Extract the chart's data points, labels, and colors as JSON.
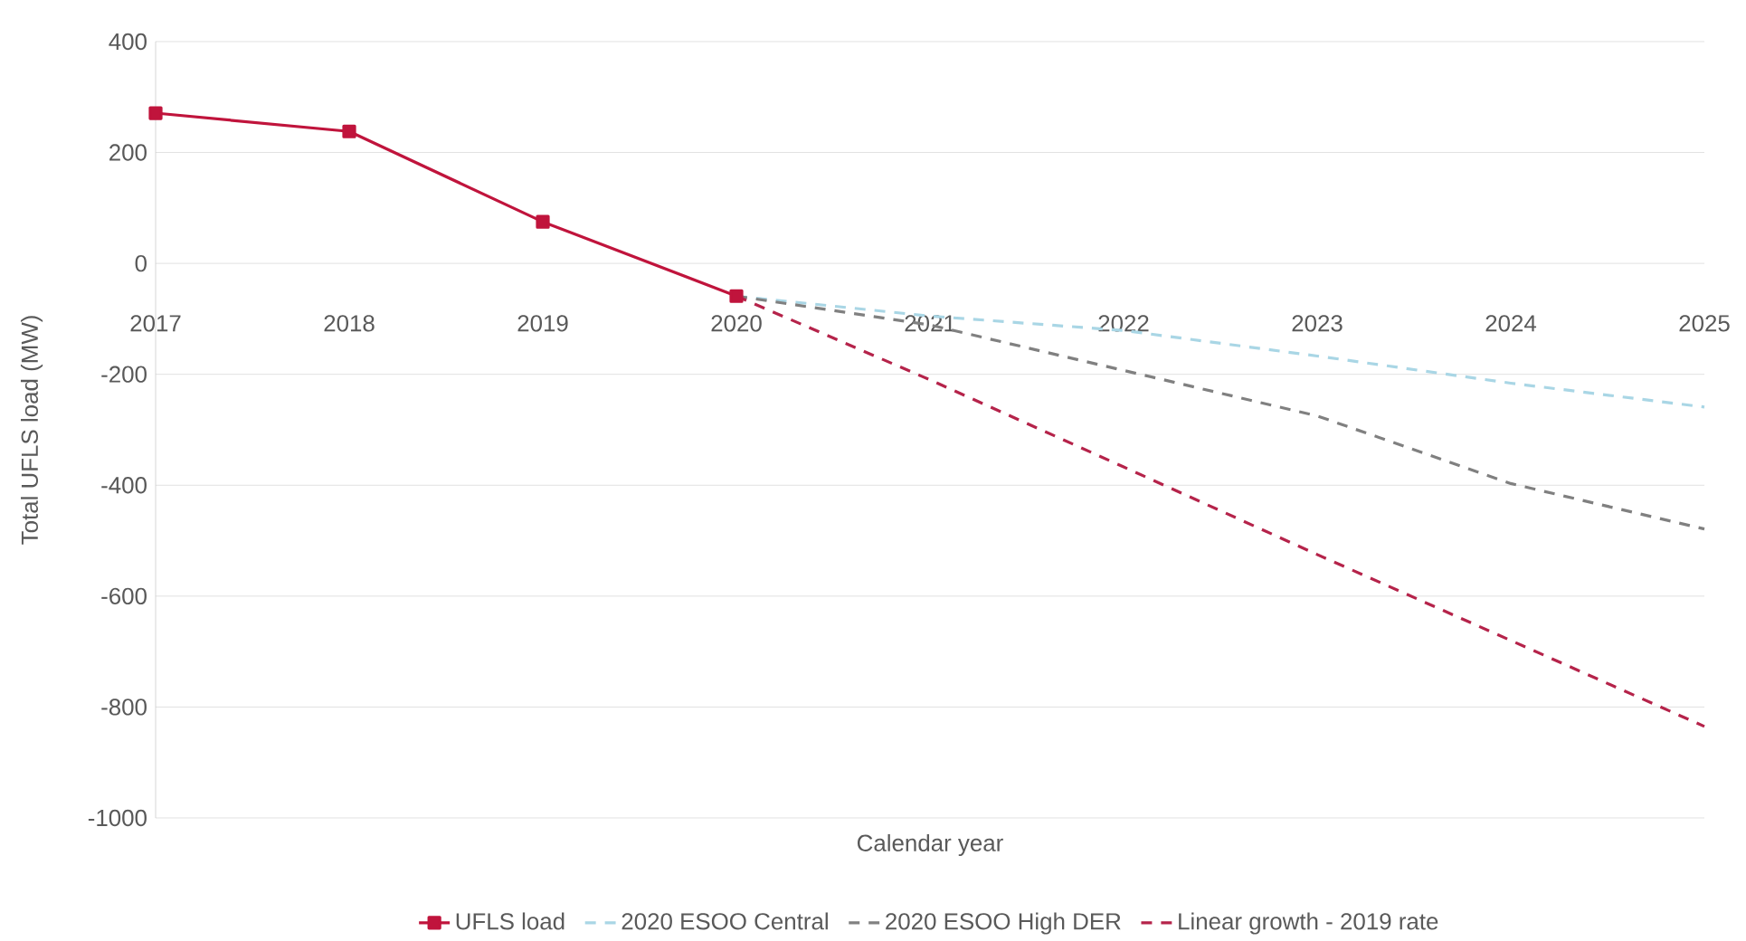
{
  "chart_data": {
    "type": "line",
    "xlabel": "Calendar year",
    "ylabel": "Total UFLS load (MW)",
    "categories": [
      "2017",
      "2018",
      "2019",
      "2020",
      "2021",
      "2022",
      "2023",
      "2024",
      "2025"
    ],
    "series": [
      {
        "name": "UFLS load",
        "color": "#c0143c",
        "marker": "square",
        "line_style": "solid",
        "values": [
          271,
          238,
          75,
          -59,
          null,
          null,
          null,
          null,
          null
        ]
      },
      {
        "name": "2020 ESOO Central",
        "color": "#a9d6e5",
        "marker": "none",
        "line_style": "dashed",
        "values": [
          null,
          null,
          null,
          -59,
          -95,
          -121,
          -167,
          -216,
          -259
        ]
      },
      {
        "name": "2020 ESOO High DER",
        "color": "#808080",
        "marker": "none",
        "line_style": "dashed",
        "values": [
          null,
          null,
          null,
          -59,
          -111,
          -193,
          -275,
          -397,
          -479
        ]
      },
      {
        "name": "Linear growth - 2019 rate",
        "color": "#b5234a",
        "marker": "none",
        "line_style": "dashed",
        "values": [
          null,
          null,
          null,
          -59,
          -210,
          -367,
          -525,
          -680,
          -835
        ]
      }
    ],
    "ylim": [
      -1000,
      400
    ],
    "yticks": [
      -1000,
      -800,
      -600,
      -400,
      -200,
      0,
      200,
      400
    ],
    "grid": "y",
    "legend": "bottom"
  }
}
